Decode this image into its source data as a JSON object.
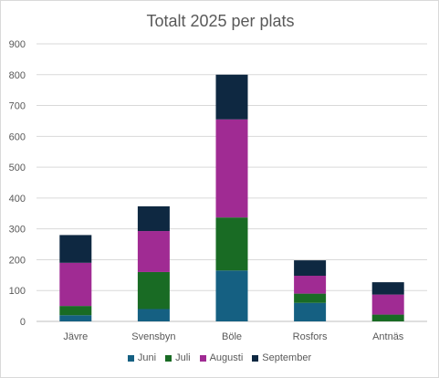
{
  "chart_data": {
    "type": "bar",
    "stacked": true,
    "title": "Totalt 2025 per plats",
    "categories": [
      "Jävre",
      "Svensbyn",
      "Böle",
      "Rosfors",
      "Antnäs"
    ],
    "series": [
      {
        "name": "Juni",
        "color": "#156082",
        "values": [
          20,
          40,
          165,
          60,
          0
        ]
      },
      {
        "name": "Juli",
        "color": "#196B24",
        "values": [
          30,
          120,
          172,
          30,
          22
        ]
      },
      {
        "name": "Augusti",
        "color": "#A02B93",
        "values": [
          140,
          133,
          318,
          58,
          65
        ]
      },
      {
        "name": "September",
        "color": "#0E2841",
        "values": [
          90,
          80,
          145,
          50,
          40
        ]
      }
    ],
    "ylim": [
      0,
      900
    ],
    "yticks": [
      "0",
      "100",
      "200",
      "300",
      "400",
      "500",
      "600",
      "700",
      "800",
      "900"
    ],
    "grid": true,
    "legend_position": "bottom"
  }
}
